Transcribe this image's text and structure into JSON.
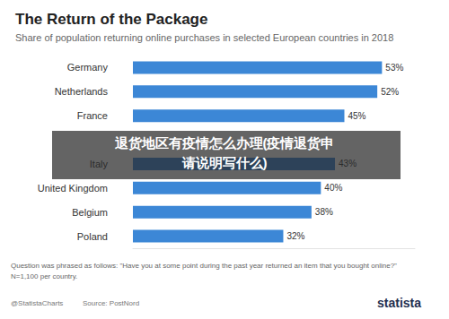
{
  "chart_data": {
    "type": "bar",
    "orientation": "horizontal",
    "title": "The Return of the Package",
    "subtitle": "Share of population returning online purchases in selected European countries in 2018",
    "categories": [
      "Germany",
      "Netherlands",
      "France",
      null,
      "Italy",
      "United Kingdom",
      "Belgium",
      "Poland"
    ],
    "values": [
      53,
      52,
      45,
      null,
      43,
      40,
      38,
      32
    ],
    "value_labels": [
      "53%",
      "52%",
      "45%",
      null,
      "43%",
      "40%",
      "38%",
      "32%"
    ],
    "color": "#3c87d6",
    "xlim": [
      0,
      60
    ],
    "grid": false,
    "tick_labels": "y",
    "data_labels": true,
    "annotations": [
      "退货地区有疫情怎么办理(疫情退货申",
      "请说明写什么)"
    ],
    "note": "Question was phrased as follows: \"Have you at some point during the past year returned an item that you bought online?\"",
    "sample": "N=1,100 per country.",
    "credit": "@StatistaCharts",
    "source": "Source: PostNord",
    "brand": "statista"
  }
}
